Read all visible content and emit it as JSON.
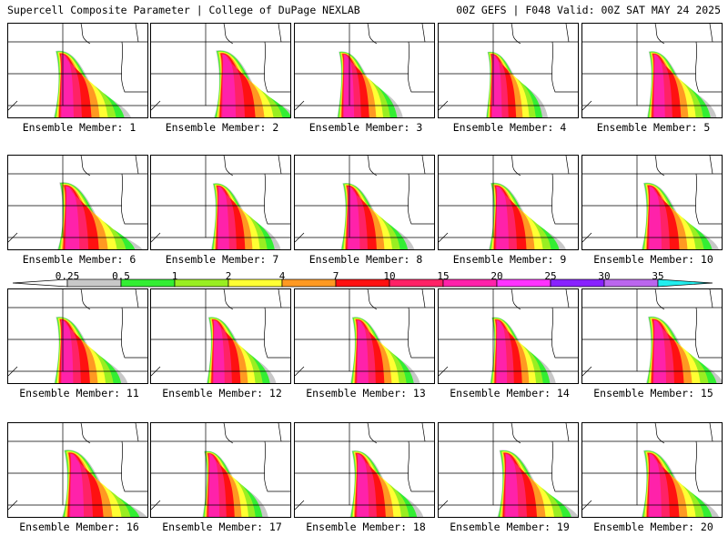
{
  "header": {
    "left": "Supercell Composite Parameter | College of DuPage NEXLAB",
    "right": "00Z GEFS | F048 Valid: 00Z SAT MAY 24 2025"
  },
  "panels": [
    {
      "label": "Ensemble Member: 1"
    },
    {
      "label": "Ensemble Member: 2"
    },
    {
      "label": "Ensemble Member: 3"
    },
    {
      "label": "Ensemble Member: 4"
    },
    {
      "label": "Ensemble Member: 5"
    },
    {
      "label": "Ensemble Member: 6"
    },
    {
      "label": "Ensemble Member: 7"
    },
    {
      "label": "Ensemble Member: 8"
    },
    {
      "label": "Ensemble Member: 9"
    },
    {
      "label": "Ensemble Member: 10"
    },
    {
      "label": "Ensemble Member: 11"
    },
    {
      "label": "Ensemble Member: 12"
    },
    {
      "label": "Ensemble Member: 13"
    },
    {
      "label": "Ensemble Member: 14"
    },
    {
      "label": "Ensemble Member: 15"
    },
    {
      "label": "Ensemble Member: 16"
    },
    {
      "label": "Ensemble Member: 17"
    },
    {
      "label": "Ensemble Member: 18"
    },
    {
      "label": "Ensemble Member: 19"
    },
    {
      "label": "Ensemble Member: 20"
    }
  ],
  "color_scale": {
    "ticks": [
      "0.25",
      "0.5",
      "1",
      "2",
      "4",
      "7",
      "10",
      "15",
      "20",
      "25",
      "30",
      "35"
    ],
    "colors": [
      "#c8c8c8",
      "#33ee33",
      "#99ee22",
      "#ffff33",
      "#ff9922",
      "#ff1111",
      "#ff2266",
      "#ff22aa",
      "#ff33ff",
      "#8822ff",
      "#bb66ee",
      "#22eeee"
    ]
  }
}
